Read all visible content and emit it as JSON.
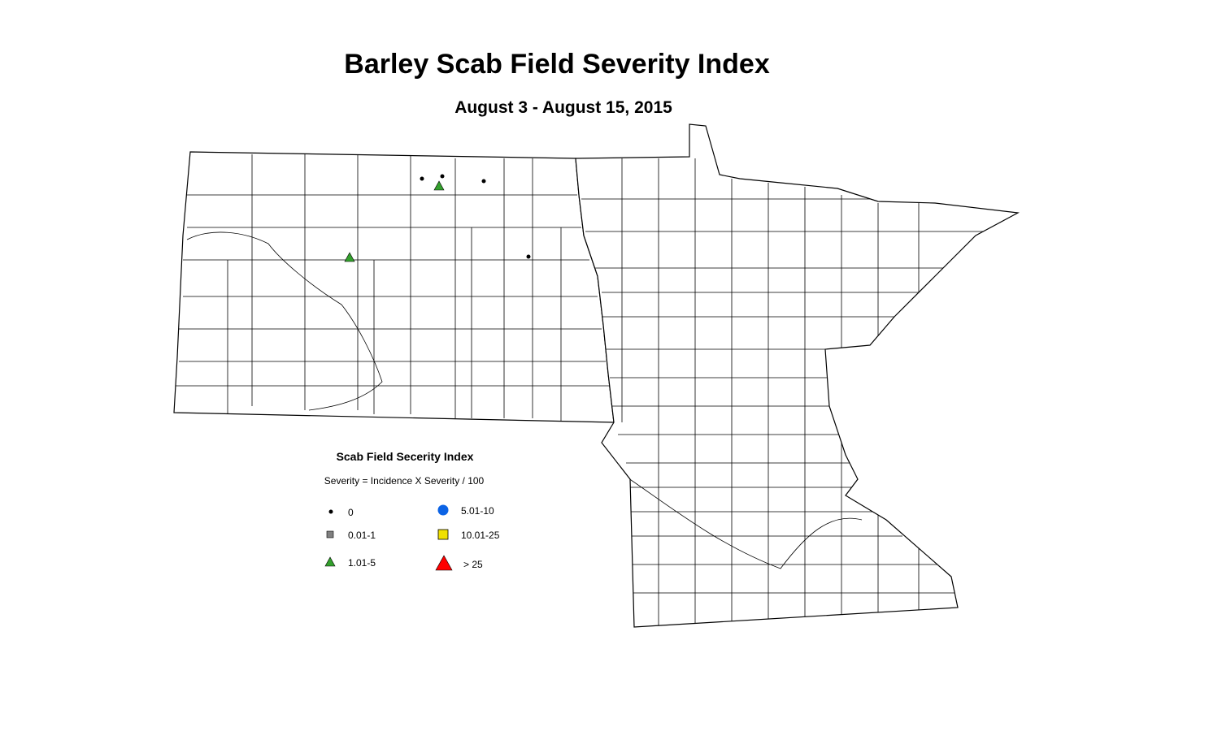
{
  "title": "Barley Scab Field Severity Index",
  "subtitle": "August 3 - August 15, 2015",
  "legend": {
    "title": "Scab Field Secerity Index",
    "note": "Severity = Incidence X Severity / 100",
    "items": [
      {
        "label": "0",
        "color": "#000000"
      },
      {
        "label": "0.01-1",
        "color": "#808080"
      },
      {
        "label": "1.01-5",
        "color": "#33a02c"
      },
      {
        "label": "5.01-10",
        "color": "#0b63e5"
      },
      {
        "label": "10.01-25",
        "color": "#f0e000"
      },
      {
        "label": "> 25",
        "color": "#ff0000"
      }
    ]
  }
}
